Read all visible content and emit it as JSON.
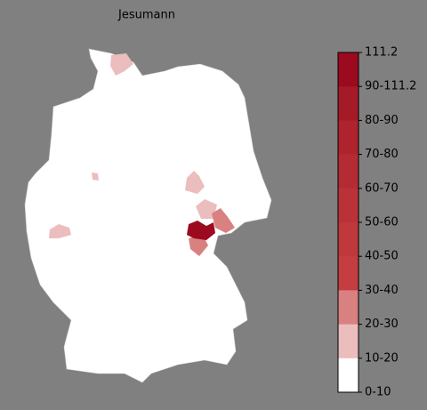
{
  "title": "Jesumann",
  "colorbar": {
    "labels": [
      "111.2",
      "90-111.2",
      "80-90",
      "70-80",
      "60-70",
      "50-60",
      "40-50",
      "30-40",
      "20-30",
      "10-20",
      "0-10"
    ],
    "colors": [
      "#9b0a1f",
      "#a51a27",
      "#ae232d",
      "#b52b33",
      "#ba3238",
      "#bf383c",
      "#c43e41",
      "#d98080",
      "#ecbdbd",
      "#ffffff"
    ]
  }
}
